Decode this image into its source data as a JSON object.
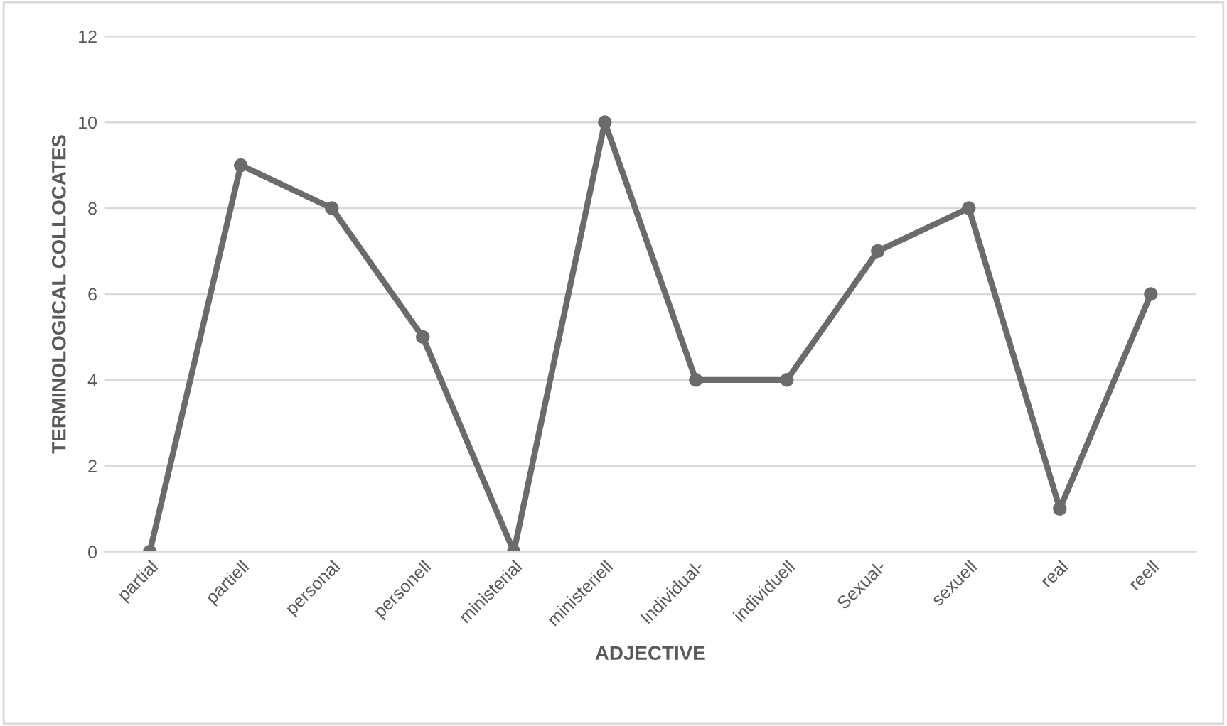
{
  "chart_data": {
    "type": "line",
    "xlabel": "ADJECTIVE",
    "ylabel": "TERMINOLOGICAL COLLOCATES",
    "categories": [
      "partial",
      "partiell",
      "personal",
      "personell",
      "ministerial",
      "ministeriell",
      "Individual-",
      "individuell",
      "Sexual-",
      "sexuell",
      "real",
      "reell"
    ],
    "series": [
      {
        "color": "#6b6b6b",
        "values": [
          0,
          9,
          8,
          5,
          0,
          10,
          4,
          4,
          7,
          8,
          1,
          6
        ]
      }
    ],
    "ylim": [
      0,
      12
    ],
    "yticks": [
      0,
      2,
      4,
      6,
      8,
      10,
      12
    ],
    "grid": "y",
    "marker": "circle",
    "line_style": "solid"
  }
}
